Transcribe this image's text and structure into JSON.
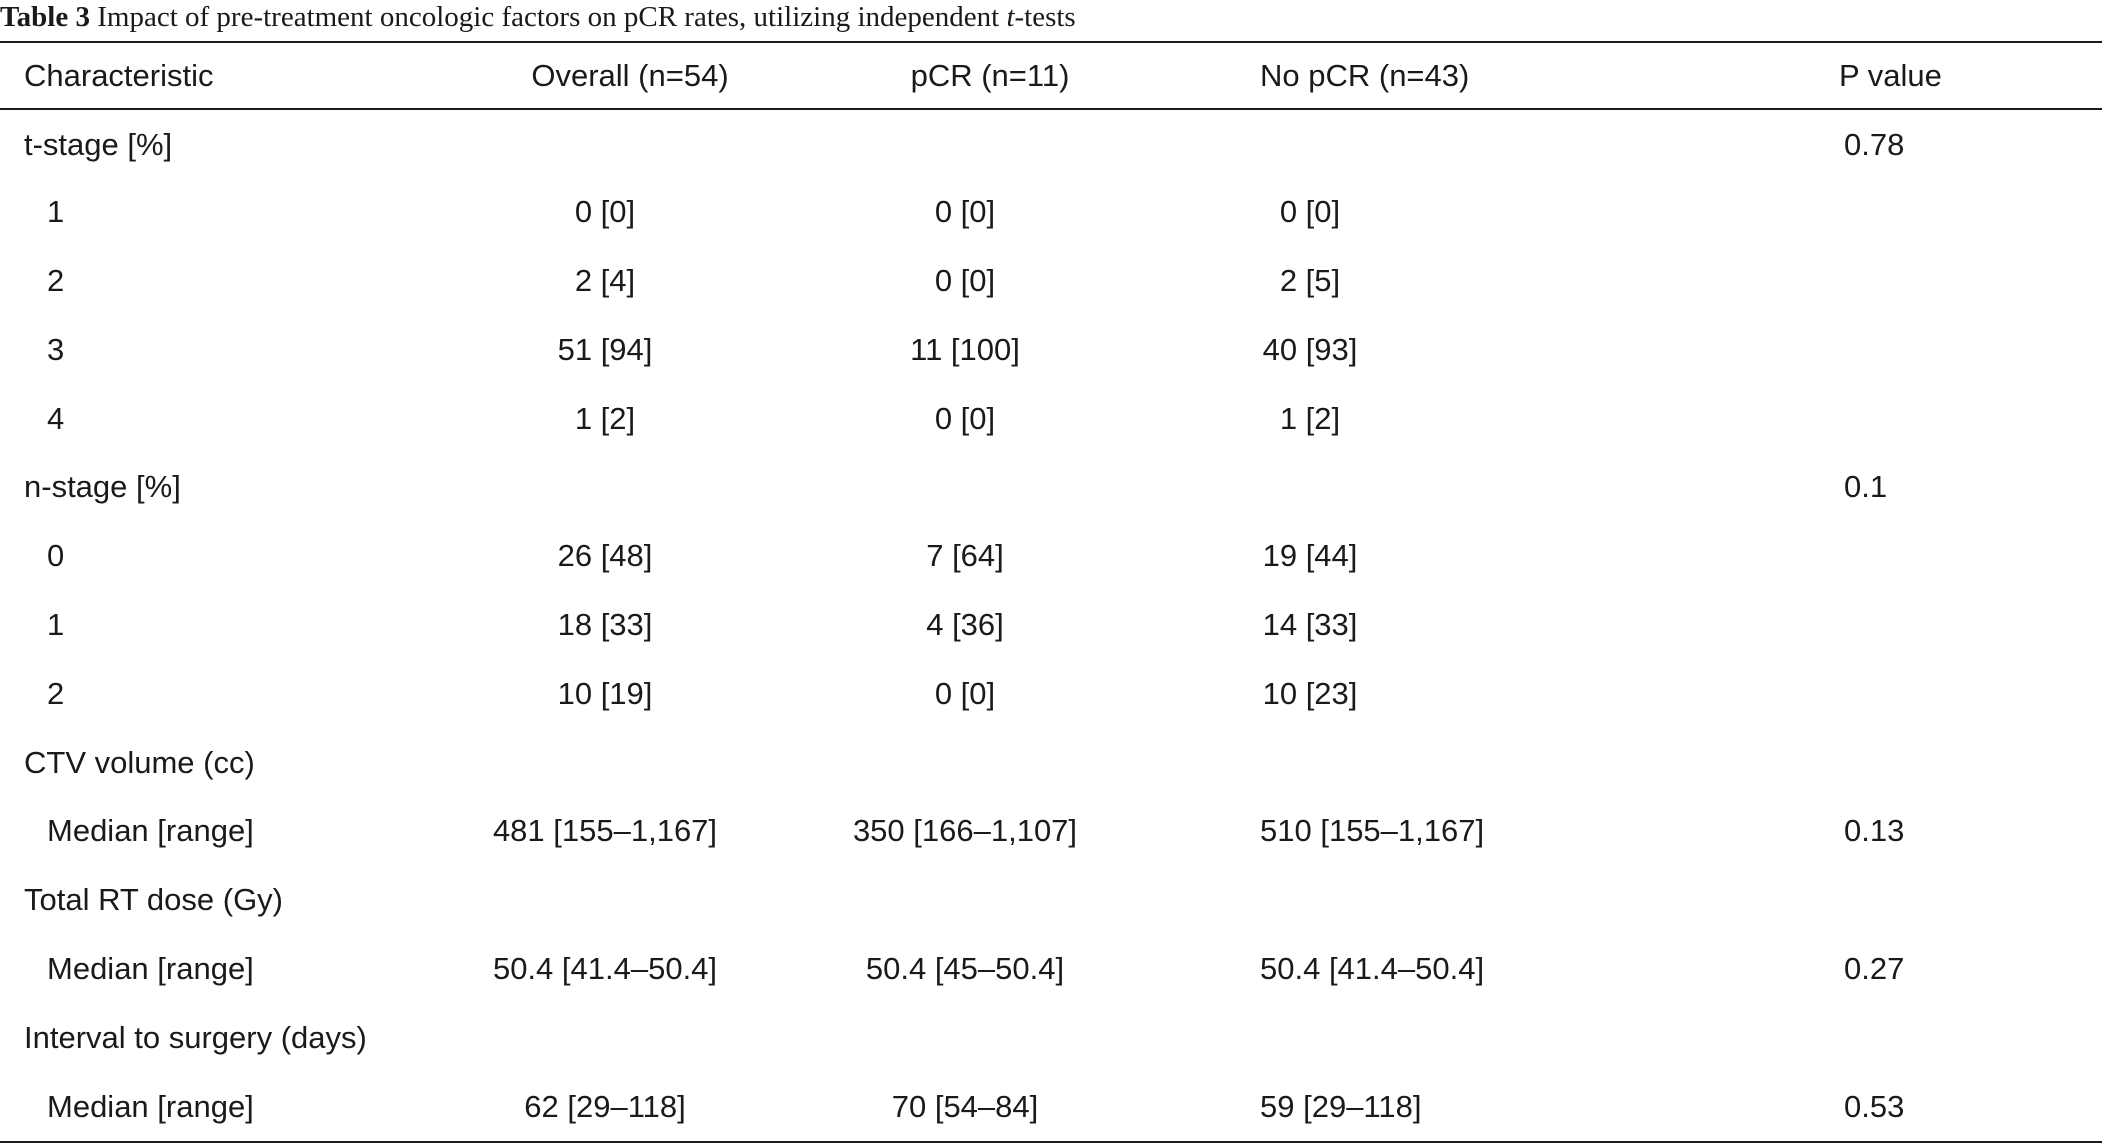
{
  "caption": {
    "label": "Table 3",
    "text_before_italic": " Impact of pre-treatment oncologic factors on pCR rates, utilizing independent ",
    "italic": "t",
    "text_after_italic": "-tests"
  },
  "table": {
    "headers": [
      "Characteristic",
      "Overall (n=54)",
      "pCR (n=11)",
      "No pCR (n=43)",
      "P value"
    ],
    "rows": [
      {
        "kind": "group",
        "cells": [
          "t-stage [%]",
          "",
          "",
          "",
          "0.78"
        ]
      },
      {
        "kind": "sub",
        "cells": [
          "1",
          "0 [0]",
          "0 [0]",
          "0 [0]",
          ""
        ]
      },
      {
        "kind": "sub",
        "cells": [
          "2",
          "2 [4]",
          "0 [0]",
          "2 [5]",
          ""
        ]
      },
      {
        "kind": "sub",
        "cells": [
          "3",
          "51 [94]",
          "11 [100]",
          "40 [93]",
          ""
        ]
      },
      {
        "kind": "sub",
        "cells": [
          "4",
          "1 [2]",
          "0 [0]",
          "1 [2]",
          ""
        ]
      },
      {
        "kind": "group",
        "cells": [
          "n-stage [%]",
          "",
          "",
          "",
          "0.1"
        ]
      },
      {
        "kind": "sub",
        "cells": [
          "0",
          "26 [48]",
          "7 [64]",
          "19 [44]",
          ""
        ]
      },
      {
        "kind": "sub",
        "cells": [
          "1",
          "18 [33]",
          "4 [36]",
          "14 [33]",
          ""
        ]
      },
      {
        "kind": "sub",
        "cells": [
          "2",
          "10 [19]",
          "0 [0]",
          "10 [23]",
          ""
        ]
      },
      {
        "kind": "group",
        "cells": [
          "CTV volume (cc)",
          "",
          "",
          "",
          ""
        ]
      },
      {
        "kind": "sub",
        "cells": [
          "Median [range]",
          "481 [155–1,167]",
          "350 [166–1,107]",
          "510 [155–1,167]",
          "0.13"
        ]
      },
      {
        "kind": "group",
        "cells": [
          "Total RT dose (Gy)",
          "",
          "",
          "",
          ""
        ]
      },
      {
        "kind": "sub",
        "cells": [
          "Median [range]",
          "50.4 [41.4–50.4]",
          "50.4 [45–50.4]",
          "50.4 [41.4–50.4]",
          "0.27"
        ]
      },
      {
        "kind": "group",
        "cells": [
          "Interval to surgery (days)",
          "",
          "",
          "",
          ""
        ]
      },
      {
        "kind": "sub",
        "cells": [
          "Median [range]",
          "62 [29–118]",
          "70 [54–84]",
          "59 [29–118]",
          "0.53"
        ]
      }
    ]
  }
}
